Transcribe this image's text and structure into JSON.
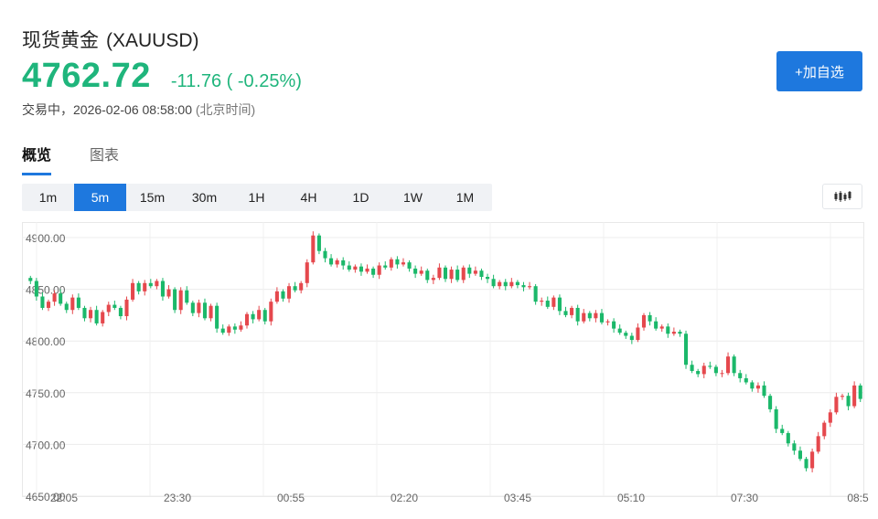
{
  "header": {
    "name": "现货黄金",
    "symbol": "(XAUUSD)",
    "price": "4762.72",
    "change": "-11.76 ( -0.25%)",
    "status": "交易中，2026-02-06 08:58:00",
    "timezone": "(北京时间)",
    "add_button": "+加自选",
    "price_color": "#1fb57c"
  },
  "tabs": [
    {
      "label": "概览",
      "active": true
    },
    {
      "label": "图表",
      "active": false
    }
  ],
  "periods": [
    {
      "label": "1m",
      "active": false
    },
    {
      "label": "5m",
      "active": true
    },
    {
      "label": "15m",
      "active": false
    },
    {
      "label": "30m",
      "active": false
    },
    {
      "label": "1H",
      "active": false
    },
    {
      "label": "4H",
      "active": false
    },
    {
      "label": "1D",
      "active": false
    },
    {
      "label": "1W",
      "active": false
    },
    {
      "label": "1M",
      "active": false
    }
  ],
  "chart_type_icon": "candlestick-icon",
  "chart_data": {
    "type": "candlestick",
    "title": "",
    "xlabel": "",
    "ylabel": "",
    "up_color": "#e5484d",
    "down_color": "#1bb86a",
    "grid": true,
    "ylim": [
      4650,
      4915
    ],
    "yticks": [
      "4650.00",
      "4700.00",
      "4750.00",
      "4800.00",
      "4850.00",
      "4900.00"
    ],
    "xticks": [
      "22:05",
      "23:30",
      "00:55",
      "02:20",
      "03:45",
      "05:10",
      "07:30",
      "08:5"
    ],
    "closes": [
      4858,
      4843,
      4832,
      4838,
      4846,
      4836,
      4830,
      4842,
      4832,
      4822,
      4830,
      4817,
      4828,
      4835,
      4832,
      4824,
      4840,
      4856,
      4848,
      4856,
      4853,
      4858,
      4843,
      4850,
      4830,
      4849,
      4837,
      4827,
      4837,
      4822,
      4834,
      4812,
      4808,
      4814,
      4811,
      4815,
      4826,
      4821,
      4830,
      4819,
      4838,
      4848,
      4841,
      4853,
      4849,
      4856,
      4876,
      4902,
      4887,
      4880,
      4874,
      4878,
      4873,
      4869,
      4872,
      4867,
      4870,
      4864,
      4873,
      4871,
      4879,
      4874,
      4876,
      4870,
      4865,
      4868,
      4859,
      4861,
      4871,
      4860,
      4869,
      4859,
      4871,
      4865,
      4868,
      4862,
      4860,
      4853,
      4857,
      4853,
      4857,
      4854,
      4852,
      4853,
      4838,
      4839,
      4833,
      4842,
      4829,
      4825,
      4832,
      4819,
      4827,
      4822,
      4827,
      4818,
      4819,
      4812,
      4808,
      4805,
      4801,
      4813,
      4825,
      4819,
      4812,
      4814,
      4807,
      4809,
      4807,
      4777,
      4771,
      4768,
      4776,
      4775,
      4769,
      4769,
      4785,
      4769,
      4764,
      4760,
      4754,
      4757,
      4747,
      4734,
      4715,
      4711,
      4701,
      4694,
      4686,
      4677,
      4693,
      4708,
      4721,
      4731,
      4746,
      4747,
      4737,
      4757,
      4744
    ],
    "close_source": "estimated from chart"
  }
}
